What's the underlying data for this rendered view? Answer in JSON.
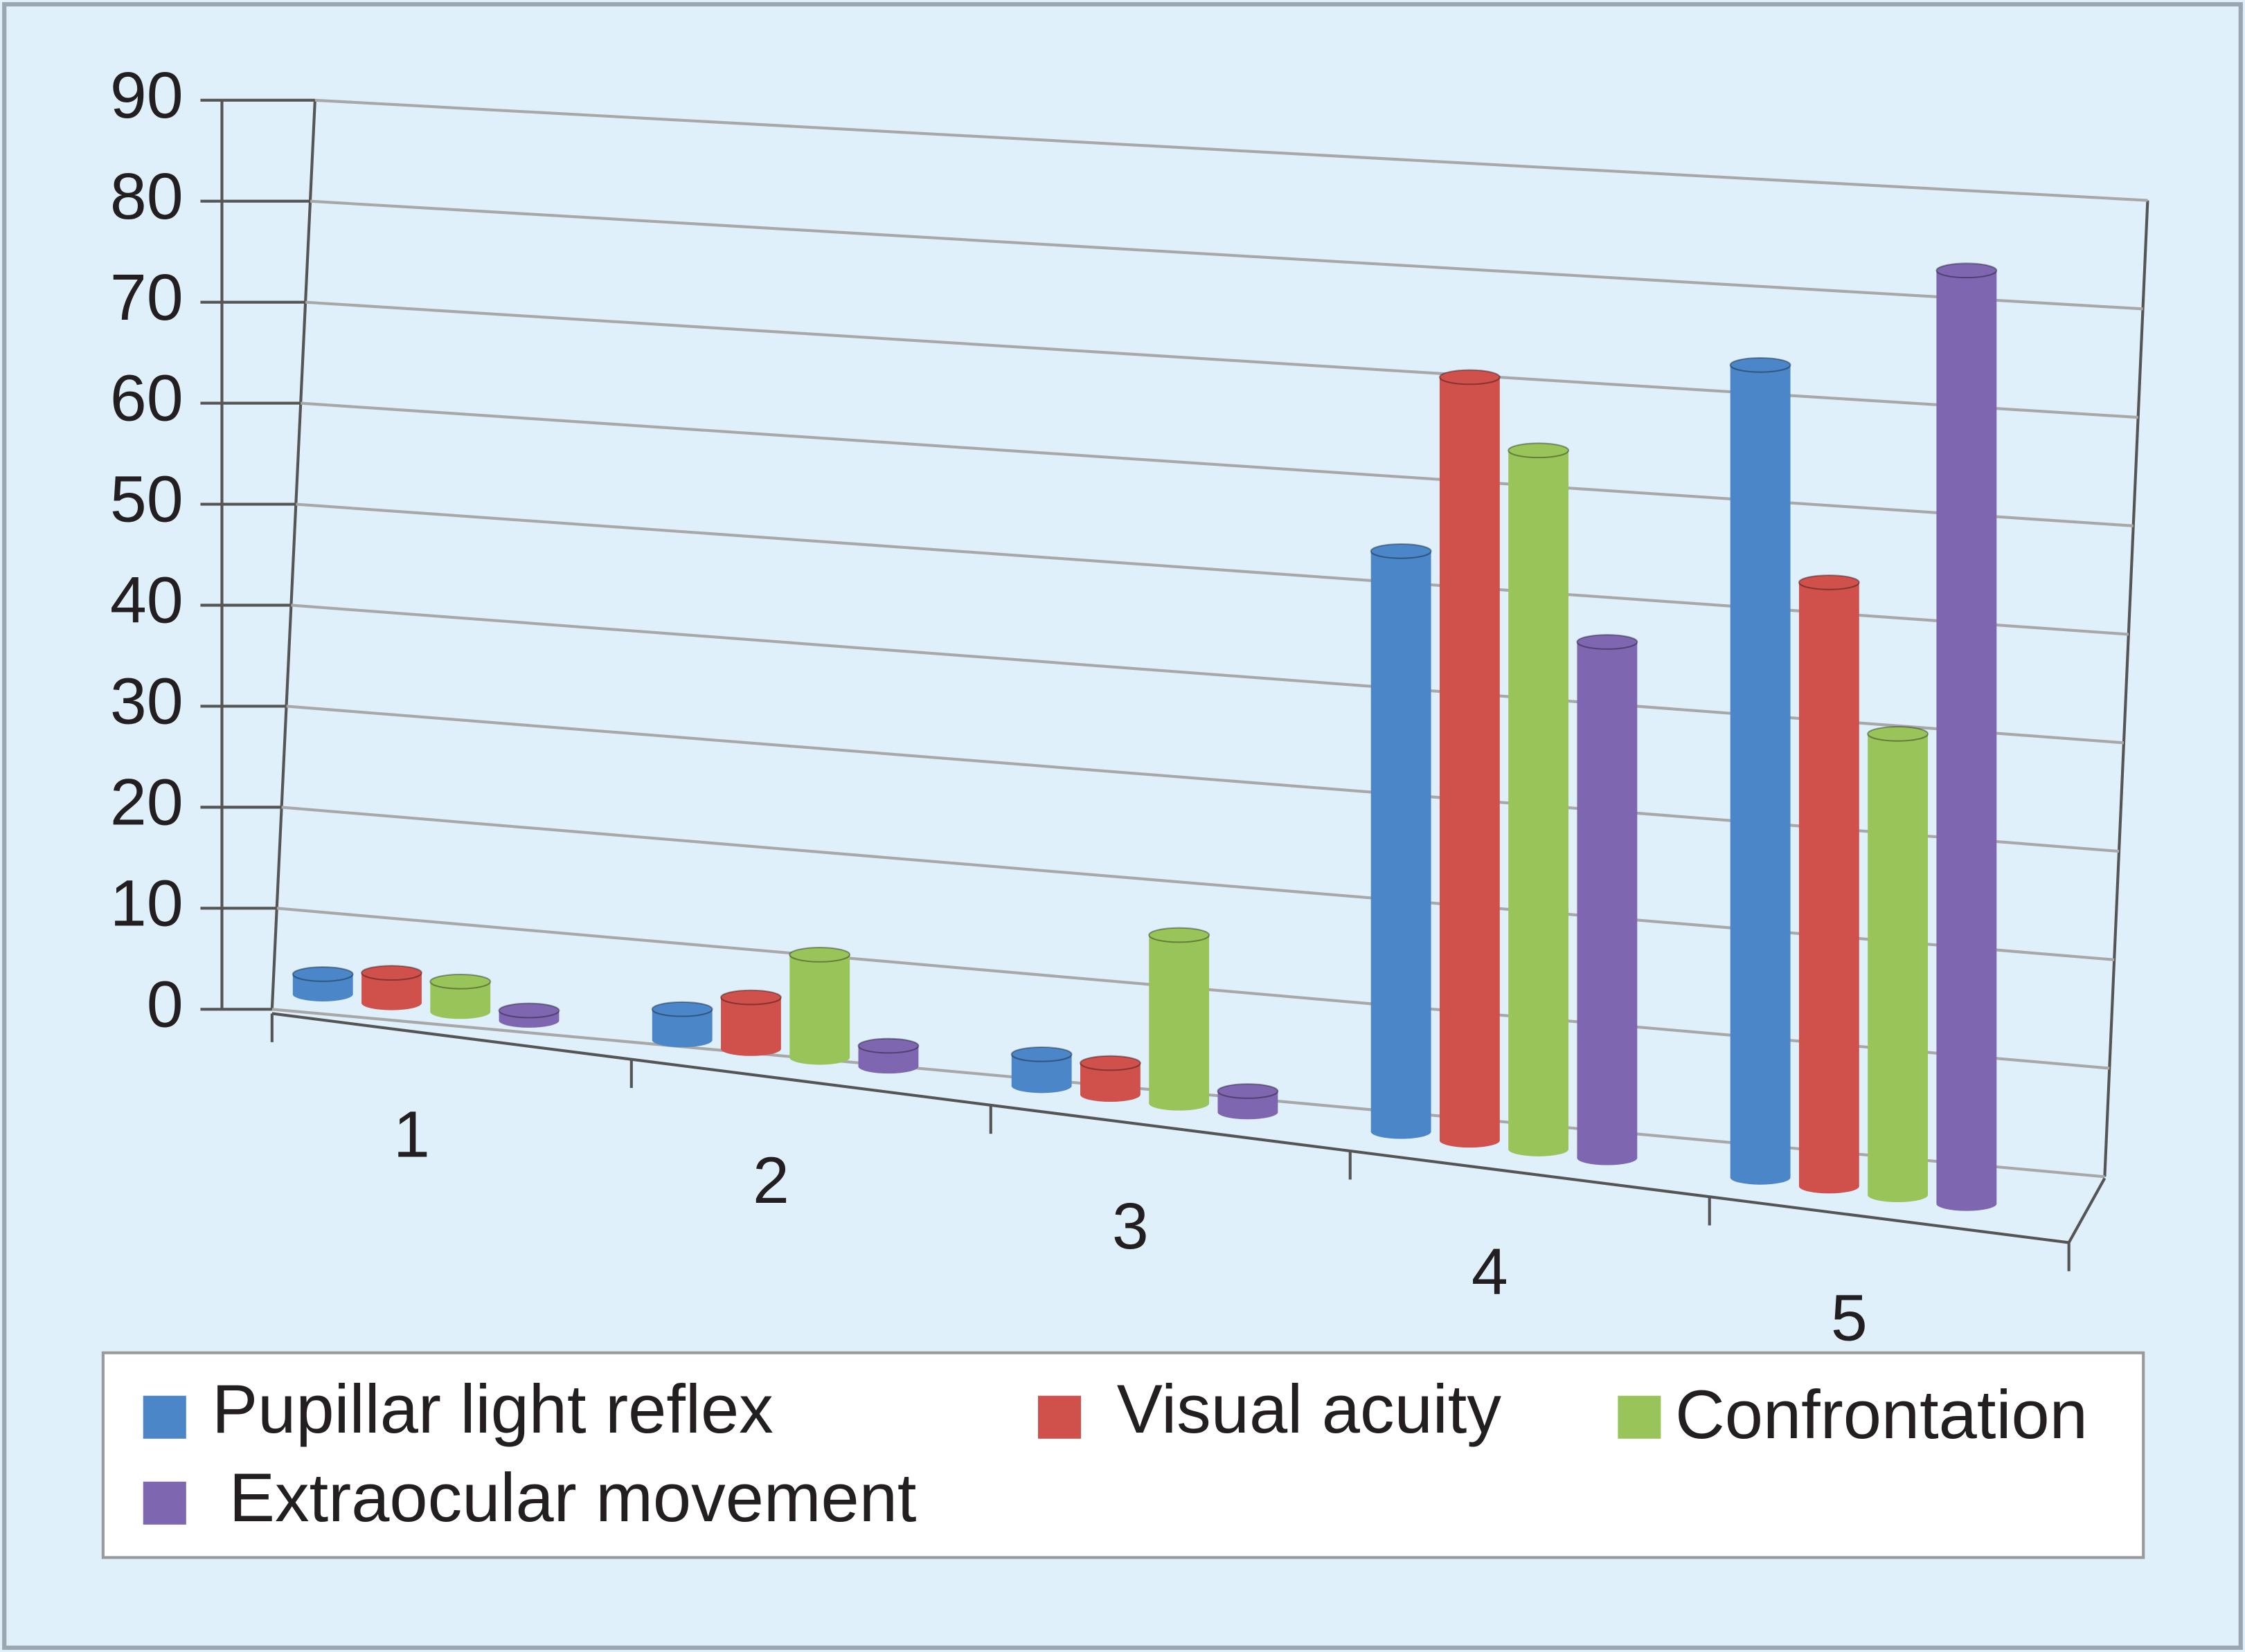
{
  "chart_data": {
    "type": "bar3d",
    "categories": [
      "1",
      "2",
      "3",
      "4",
      "5"
    ],
    "series": [
      {
        "name": "Pupillar light reflex",
        "color": "#4a86c8",
        "values": [
          2,
          3,
          3,
          54,
          74
        ]
      },
      {
        "name": "Visual acuity",
        "color": "#d0504c",
        "values": [
          3,
          5,
          3,
          71,
          55
        ]
      },
      {
        "name": "Confrontation",
        "color": "#99c45a",
        "values": [
          3,
          10,
          16,
          65,
          42
        ]
      },
      {
        "name": "Extraocular movement",
        "color": "#7e66b0",
        "values": [
          1,
          2,
          2,
          48,
          85
        ]
      }
    ],
    "ylim": [
      0,
      90
    ],
    "yticks": [
      0,
      10,
      20,
      30,
      40,
      50,
      60,
      70,
      80,
      90
    ],
    "grid": true
  }
}
